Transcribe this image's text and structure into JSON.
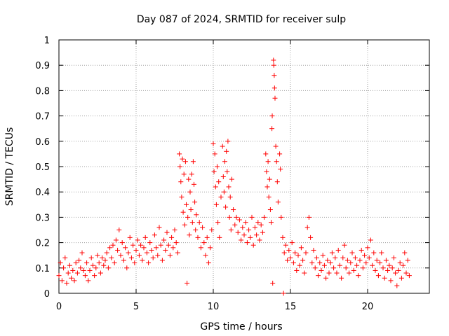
{
  "chart_data": {
    "type": "scatter",
    "title": "Day 087 of 2024, SRMTID for receiver sulp",
    "xlabel": "GPS time / hours",
    "ylabel": "SRMTID / TECUs",
    "xlim": [
      0,
      24
    ],
    "ylim": [
      0,
      1
    ],
    "xticks": [
      0,
      5,
      10,
      15,
      20
    ],
    "yticks": [
      0,
      0.1,
      0.2,
      0.3,
      0.4,
      0.5,
      0.6,
      0.7,
      0.8,
      0.9,
      1
    ],
    "xtick_labels": [
      "0",
      "5",
      "10",
      "15",
      "20"
    ],
    "ytick_labels": [
      "0",
      "0.1",
      "0.2",
      "0.3",
      "0.4",
      "0.5",
      "0.6",
      "0.7",
      "0.8",
      "0.9",
      "1"
    ],
    "grid": true,
    "marker": "+",
    "color": "#ff0000",
    "series": [
      {
        "name": "SRMTID",
        "points": [
          [
            0.0,
            0.07
          ],
          [
            0.1,
            0.12
          ],
          [
            0.2,
            0.05
          ],
          [
            0.3,
            0.1
          ],
          [
            0.4,
            0.14
          ],
          [
            0.5,
            0.04
          ],
          [
            0.6,
            0.08
          ],
          [
            0.7,
            0.11
          ],
          [
            0.8,
            0.06
          ],
          [
            0.9,
            0.09
          ],
          [
            1.0,
            0.05
          ],
          [
            1.1,
            0.12
          ],
          [
            1.2,
            0.08
          ],
          [
            1.3,
            0.13
          ],
          [
            1.4,
            0.1
          ],
          [
            1.5,
            0.16
          ],
          [
            1.6,
            0.09
          ],
          [
            1.7,
            0.07
          ],
          [
            1.8,
            0.12
          ],
          [
            1.9,
            0.05
          ],
          [
            2.0,
            0.09
          ],
          [
            2.1,
            0.14
          ],
          [
            2.2,
            0.11
          ],
          [
            2.3,
            0.07
          ],
          [
            2.4,
            0.1
          ],
          [
            2.5,
            0.15
          ],
          [
            2.6,
            0.12
          ],
          [
            2.7,
            0.08
          ],
          [
            2.8,
            0.14
          ],
          [
            2.9,
            0.11
          ],
          [
            3.0,
            0.13
          ],
          [
            3.1,
            0.16
          ],
          [
            3.2,
            0.1
          ],
          [
            3.3,
            0.18
          ],
          [
            3.4,
            0.14
          ],
          [
            3.5,
            0.19
          ],
          [
            3.6,
            0.12
          ],
          [
            3.7,
            0.21
          ],
          [
            3.8,
            0.17
          ],
          [
            3.9,
            0.25
          ],
          [
            4.0,
            0.15
          ],
          [
            4.1,
            0.2
          ],
          [
            4.2,
            0.13
          ],
          [
            4.3,
            0.18
          ],
          [
            4.4,
            0.1
          ],
          [
            4.5,
            0.16
          ],
          [
            4.6,
            0.22
          ],
          [
            4.7,
            0.14
          ],
          [
            4.8,
            0.19
          ],
          [
            4.9,
            0.12
          ],
          [
            5.0,
            0.17
          ],
          [
            5.1,
            0.21
          ],
          [
            5.2,
            0.15
          ],
          [
            5.3,
            0.19
          ],
          [
            5.4,
            0.13
          ],
          [
            5.5,
            0.18
          ],
          [
            5.6,
            0.22
          ],
          [
            5.7,
            0.16
          ],
          [
            5.8,
            0.12
          ],
          [
            5.9,
            0.2
          ],
          [
            6.0,
            0.17
          ],
          [
            6.1,
            0.14
          ],
          [
            6.2,
            0.23
          ],
          [
            6.3,
            0.18
          ],
          [
            6.4,
            0.15
          ],
          [
            6.5,
            0.26
          ],
          [
            6.6,
            0.19
          ],
          [
            6.7,
            0.13
          ],
          [
            6.8,
            0.21
          ],
          [
            6.9,
            0.17
          ],
          [
            7.0,
            0.24
          ],
          [
            7.1,
            0.19
          ],
          [
            7.2,
            0.15
          ],
          [
            7.3,
            0.22
          ],
          [
            7.4,
            0.18
          ],
          [
            7.5,
            0.25
          ],
          [
            7.6,
            0.2
          ],
          [
            7.7,
            0.16
          ],
          [
            7.8,
            0.55
          ],
          [
            7.85,
            0.5
          ],
          [
            7.9,
            0.44
          ],
          [
            7.95,
            0.38
          ],
          [
            8.0,
            0.53
          ],
          [
            8.05,
            0.32
          ],
          [
            8.1,
            0.47
          ],
          [
            8.15,
            0.27
          ],
          [
            8.2,
            0.52
          ],
          [
            8.25,
            0.35
          ],
          [
            8.3,
            0.04
          ],
          [
            8.35,
            0.3
          ],
          [
            8.4,
            0.45
          ],
          [
            8.45,
            0.23
          ],
          [
            8.5,
            0.4
          ],
          [
            8.55,
            0.33
          ],
          [
            8.6,
            0.47
          ],
          [
            8.65,
            0.28
          ],
          [
            8.7,
            0.52
          ],
          [
            8.75,
            0.43
          ],
          [
            8.8,
            0.36
          ],
          [
            8.85,
            0.25
          ],
          [
            8.9,
            0.31
          ],
          [
            9.0,
            0.22
          ],
          [
            9.1,
            0.28
          ],
          [
            9.2,
            0.18
          ],
          [
            9.3,
            0.26
          ],
          [
            9.4,
            0.2
          ],
          [
            9.5,
            0.15
          ],
          [
            9.6,
            0.22
          ],
          [
            9.7,
            0.12
          ],
          [
            9.8,
            0.18
          ],
          [
            9.9,
            0.25
          ],
          [
            10.0,
            0.59
          ],
          [
            10.05,
            0.48
          ],
          [
            10.1,
            0.55
          ],
          [
            10.15,
            0.42
          ],
          [
            10.2,
            0.35
          ],
          [
            10.25,
            0.5
          ],
          [
            10.3,
            0.28
          ],
          [
            10.35,
            0.44
          ],
          [
            10.4,
            0.22
          ],
          [
            10.5,
            0.38
          ],
          [
            10.6,
            0.58
          ],
          [
            10.65,
            0.46
          ],
          [
            10.7,
            0.4
          ],
          [
            10.75,
            0.52
          ],
          [
            10.8,
            0.34
          ],
          [
            10.85,
            0.56
          ],
          [
            10.9,
            0.48
          ],
          [
            10.95,
            0.6
          ],
          [
            11.0,
            0.42
          ],
          [
            11.05,
            0.3
          ],
          [
            11.1,
            0.38
          ],
          [
            11.15,
            0.25
          ],
          [
            11.2,
            0.45
          ],
          [
            11.3,
            0.33
          ],
          [
            11.4,
            0.27
          ],
          [
            11.5,
            0.3
          ],
          [
            11.6,
            0.24
          ],
          [
            11.7,
            0.29
          ],
          [
            11.8,
            0.21
          ],
          [
            11.9,
            0.26
          ],
          [
            12.0,
            0.23
          ],
          [
            12.1,
            0.28
          ],
          [
            12.2,
            0.2
          ],
          [
            12.3,
            0.25
          ],
          [
            12.4,
            0.22
          ],
          [
            12.5,
            0.3
          ],
          [
            12.6,
            0.19
          ],
          [
            12.7,
            0.26
          ],
          [
            12.8,
            0.23
          ],
          [
            12.9,
            0.28
          ],
          [
            13.0,
            0.21
          ],
          [
            13.1,
            0.27
          ],
          [
            13.2,
            0.24
          ],
          [
            13.3,
            0.3
          ],
          [
            13.4,
            0.55
          ],
          [
            13.45,
            0.48
          ],
          [
            13.5,
            0.42
          ],
          [
            13.55,
            0.52
          ],
          [
            13.6,
            0.38
          ],
          [
            13.65,
            0.45
          ],
          [
            13.7,
            0.33
          ],
          [
            13.75,
            0.28
          ],
          [
            13.8,
            0.65
          ],
          [
            13.82,
            0.7
          ],
          [
            13.85,
            0.04
          ],
          [
            13.9,
            0.92
          ],
          [
            13.92,
            0.9
          ],
          [
            13.95,
            0.86
          ],
          [
            13.97,
            0.81
          ],
          [
            14.0,
            0.77
          ],
          [
            14.05,
            0.58
          ],
          [
            14.1,
            0.52
          ],
          [
            14.15,
            0.44
          ],
          [
            14.2,
            0.36
          ],
          [
            14.3,
            0.55
          ],
          [
            14.35,
            0.49
          ],
          [
            14.4,
            0.3
          ],
          [
            14.5,
            0.22
          ],
          [
            14.55,
            0.0
          ],
          [
            14.6,
            0.16
          ],
          [
            14.7,
            0.19
          ],
          [
            14.8,
            0.13
          ],
          [
            14.9,
            0.17
          ],
          [
            15.0,
            0.14
          ],
          [
            15.1,
            0.2
          ],
          [
            15.2,
            0.12
          ],
          [
            15.3,
            0.16
          ],
          [
            15.4,
            0.09
          ],
          [
            15.5,
            0.15
          ],
          [
            15.6,
            0.11
          ],
          [
            15.7,
            0.18
          ],
          [
            15.8,
            0.13
          ],
          [
            15.9,
            0.08
          ],
          [
            16.0,
            0.16
          ],
          [
            16.1,
            0.26
          ],
          [
            16.2,
            0.3
          ],
          [
            16.3,
            0.22
          ],
          [
            16.4,
            0.12
          ],
          [
            16.5,
            0.17
          ],
          [
            16.6,
            0.1
          ],
          [
            16.7,
            0.14
          ],
          [
            16.8,
            0.07
          ],
          [
            16.9,
            0.12
          ],
          [
            17.0,
            0.09
          ],
          [
            17.1,
            0.15
          ],
          [
            17.2,
            0.11
          ],
          [
            17.3,
            0.06
          ],
          [
            17.4,
            0.13
          ],
          [
            17.5,
            0.08
          ],
          [
            17.6,
            0.12
          ],
          [
            17.7,
            0.16
          ],
          [
            17.8,
            0.1
          ],
          [
            17.9,
            0.14
          ],
          [
            18.0,
            0.08
          ],
          [
            18.1,
            0.17
          ],
          [
            18.2,
            0.11
          ],
          [
            18.3,
            0.06
          ],
          [
            18.4,
            0.14
          ],
          [
            18.5,
            0.19
          ],
          [
            18.6,
            0.1
          ],
          [
            18.7,
            0.13
          ],
          [
            18.8,
            0.08
          ],
          [
            18.9,
            0.12
          ],
          [
            19.0,
            0.16
          ],
          [
            19.1,
            0.09
          ],
          [
            19.2,
            0.14
          ],
          [
            19.3,
            0.11
          ],
          [
            19.4,
            0.07
          ],
          [
            19.5,
            0.13
          ],
          [
            19.6,
            0.17
          ],
          [
            19.7,
            0.1
          ],
          [
            19.8,
            0.15
          ],
          [
            19.9,
            0.12
          ],
          [
            20.0,
            0.18
          ],
          [
            20.1,
            0.14
          ],
          [
            20.2,
            0.21
          ],
          [
            20.3,
            0.11
          ],
          [
            20.4,
            0.16
          ],
          [
            20.5,
            0.09
          ],
          [
            20.6,
            0.13
          ],
          [
            20.7,
            0.07
          ],
          [
            20.8,
            0.12
          ],
          [
            20.9,
            0.16
          ],
          [
            21.0,
            0.1
          ],
          [
            21.1,
            0.06
          ],
          [
            21.2,
            0.13
          ],
          [
            21.3,
            0.09
          ],
          [
            21.4,
            0.11
          ],
          [
            21.5,
            0.05
          ],
          [
            21.6,
            0.1
          ],
          [
            21.7,
            0.14
          ],
          [
            21.8,
            0.08
          ],
          [
            21.9,
            0.03
          ],
          [
            22.0,
            0.09
          ],
          [
            22.1,
            0.12
          ],
          [
            22.2,
            0.06
          ],
          [
            22.3,
            0.11
          ],
          [
            22.4,
            0.16
          ],
          [
            22.5,
            0.08
          ],
          [
            22.6,
            0.13
          ],
          [
            22.7,
            0.07
          ]
        ]
      }
    ]
  }
}
